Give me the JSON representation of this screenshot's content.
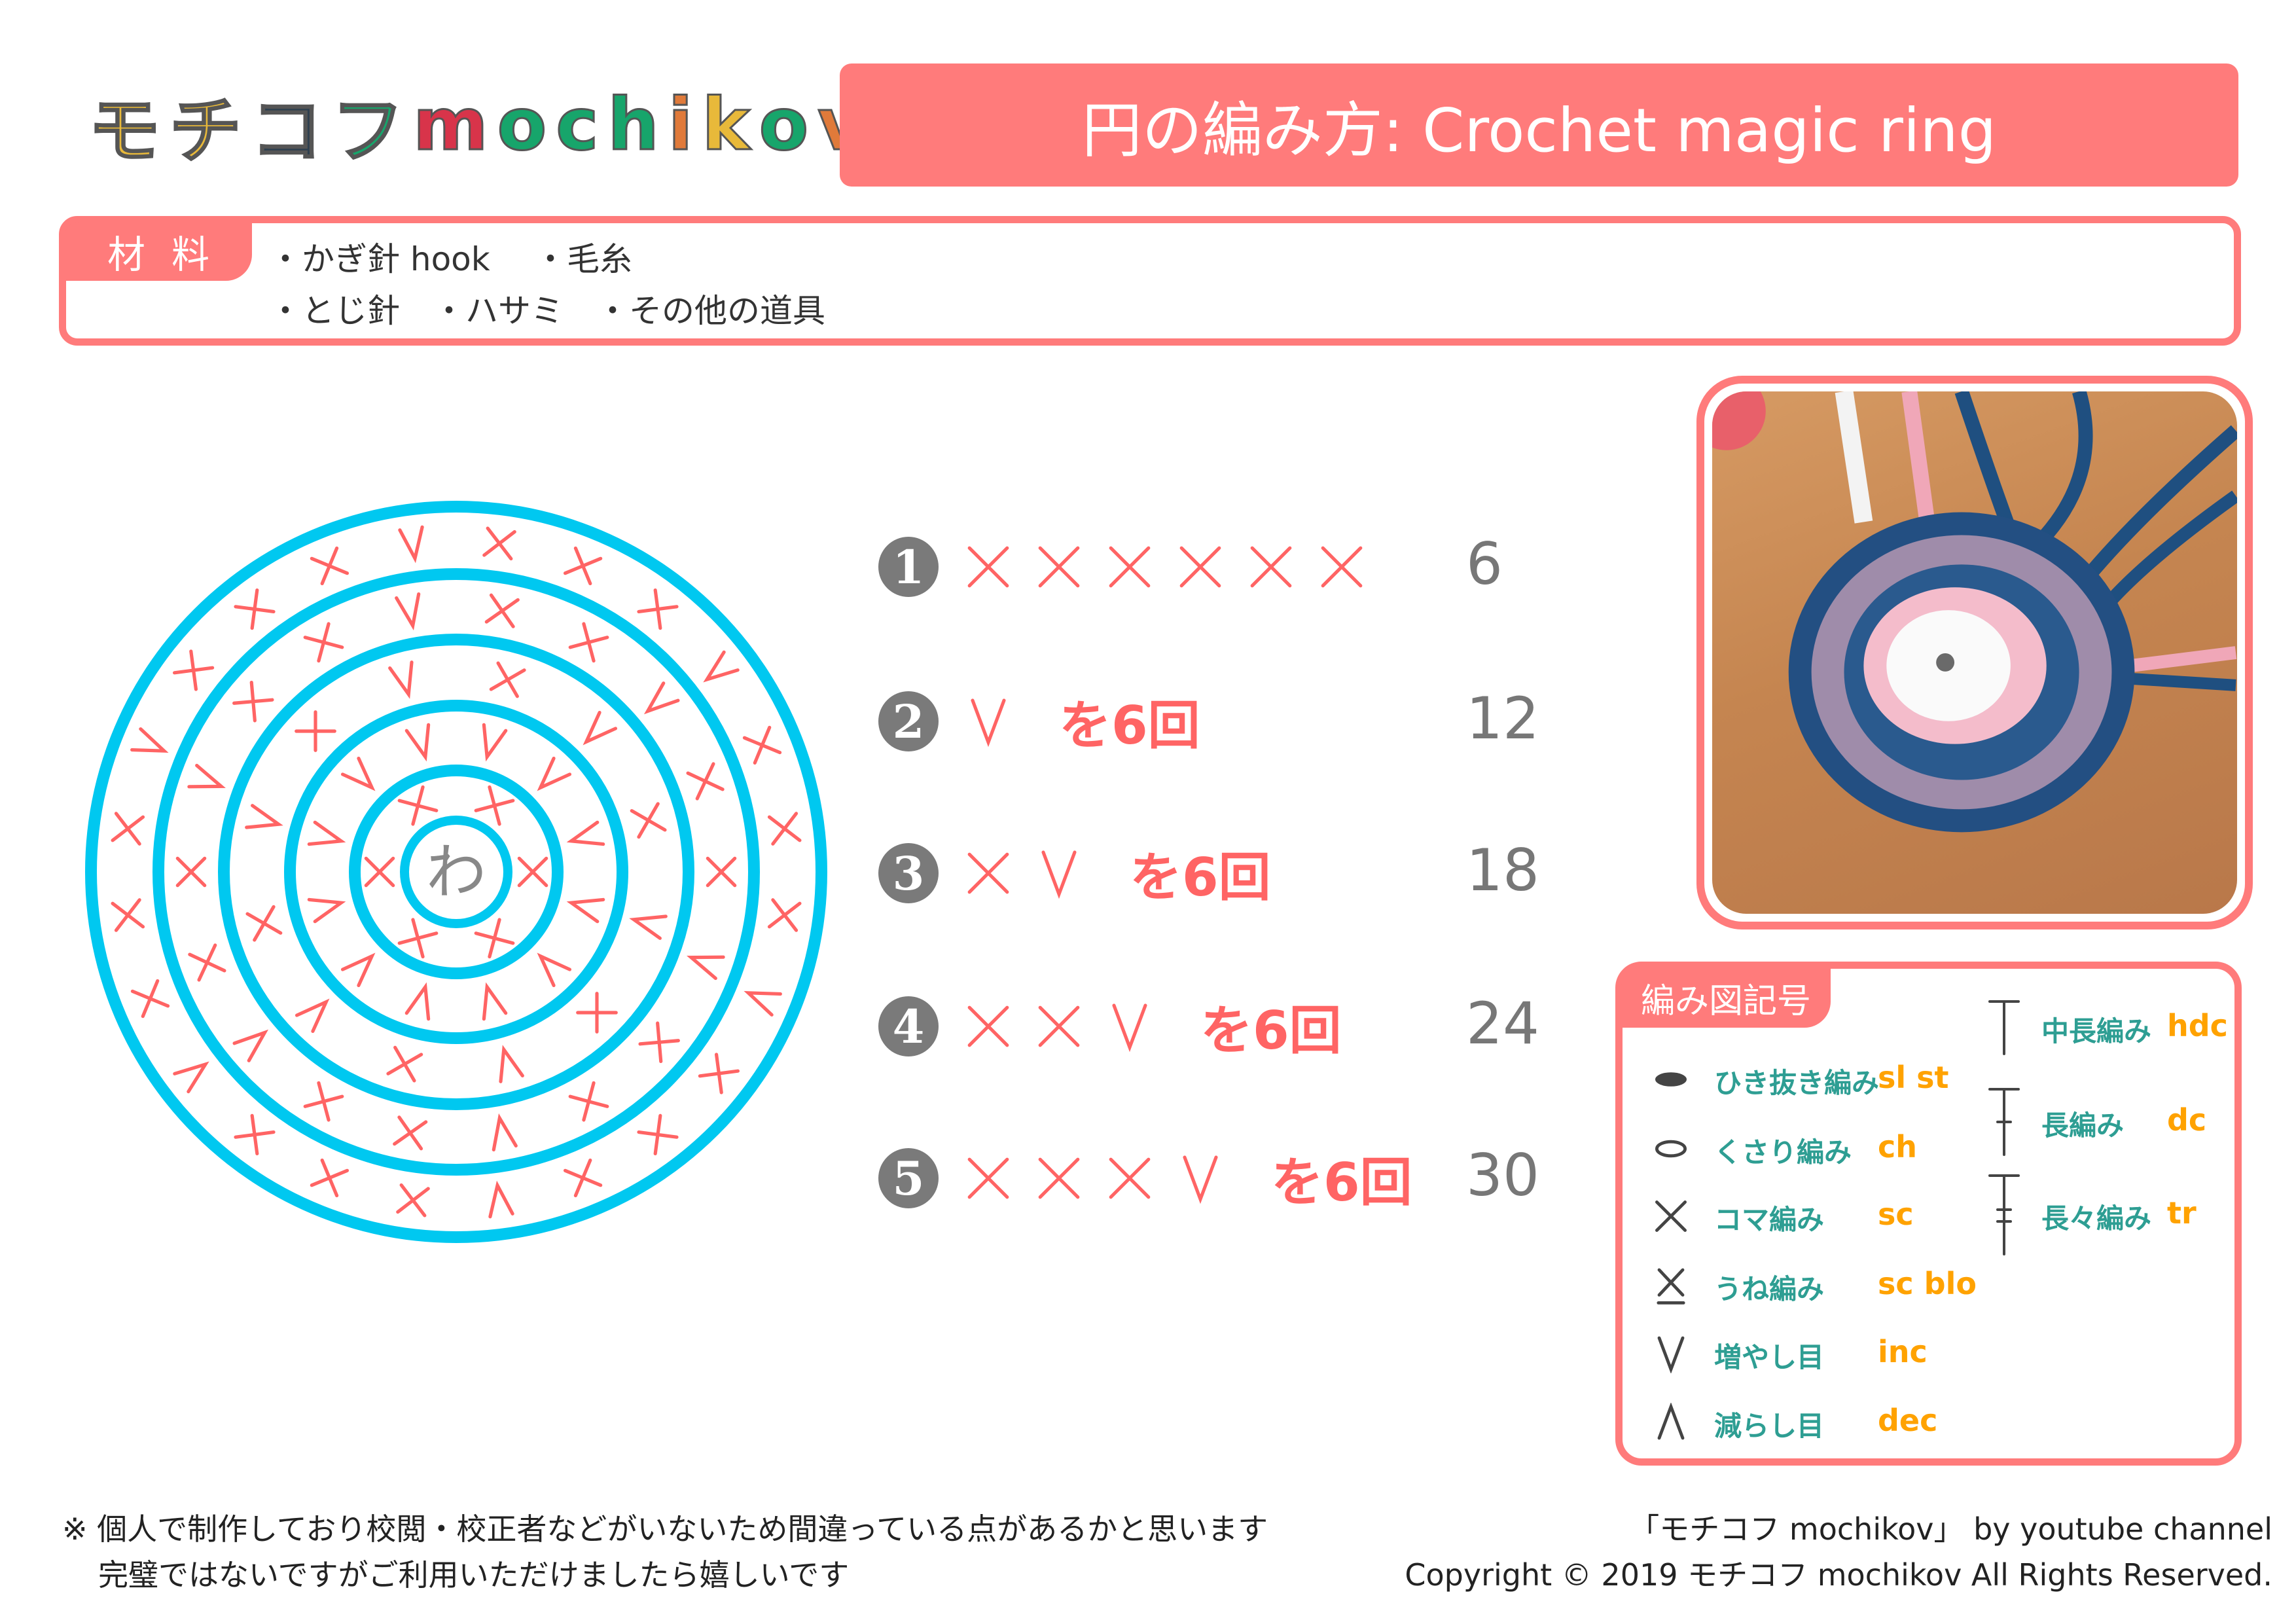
{
  "logo": {
    "text": "モチコフ mochikov",
    "colors": [
      "#e8b93a",
      "#e8b93a",
      "#2d3f4f",
      "#17a56b",
      "#d8344a",
      "#17a56b",
      "#17a56b",
      "#17a56b",
      "#e07a3a",
      "#e8b93a",
      "#17a56b",
      "#e07a3a",
      "#d8344a"
    ]
  },
  "title": "円の編み方: Crochet magic ring",
  "materials": {
    "label": "材料",
    "items_row1": [
      "・かぎ針 hook",
      "・毛糸"
    ],
    "items_row2": [
      "・とじ針",
      "・ハサミ",
      "・その他の道具"
    ]
  },
  "diagram": {
    "center_label": "わ",
    "ring_color": "#00c8f0",
    "stitch_color": "#ff6464",
    "rounds": [
      {
        "pattern": [
          "X"
        ],
        "repeat": 6
      },
      {
        "pattern": [
          "V"
        ],
        "repeat": 6
      },
      {
        "pattern": [
          "X",
          "V"
        ],
        "repeat": 6
      },
      {
        "pattern": [
          "X",
          "X",
          "V"
        ],
        "repeat": 6
      },
      {
        "pattern": [
          "X",
          "X",
          "X",
          "V"
        ],
        "repeat": 6
      }
    ]
  },
  "rows": [
    {
      "number": "1",
      "symbols": [
        "X",
        "X",
        "X",
        "X",
        "X",
        "X"
      ],
      "times": "",
      "count": "6"
    },
    {
      "number": "2",
      "symbols": [
        "V"
      ],
      "times": "を6回",
      "count": "12"
    },
    {
      "number": "3",
      "symbols": [
        "X",
        "V"
      ],
      "times": "を6回",
      "count": "18"
    },
    {
      "number": "4",
      "symbols": [
        "X",
        "X",
        "V"
      ],
      "times": "を6回",
      "count": "24"
    },
    {
      "number": "5",
      "symbols": [
        "X",
        "X",
        "X",
        "V"
      ],
      "times": "を6回",
      "count": "30"
    }
  ],
  "legend": {
    "title": "編み図記号",
    "left": [
      {
        "symbol": "slip-stitch-dot",
        "jp": "ひき抜き編み",
        "en": "sl st"
      },
      {
        "symbol": "chain-oval",
        "jp": "くさり編み",
        "en": "ch"
      },
      {
        "symbol": "x",
        "jp": "コマ編み",
        "en": "sc"
      },
      {
        "symbol": "x-underline",
        "jp": "うね編み",
        "en": "sc blo"
      },
      {
        "symbol": "v",
        "jp": "増やし目",
        "en": "inc"
      },
      {
        "symbol": "lambda",
        "jp": "減らし目",
        "en": "dec"
      }
    ],
    "right": [
      {
        "symbol": "t",
        "jp": "中長編み",
        "en": "hdc"
      },
      {
        "symbol": "t-one-bar",
        "jp": "長編み",
        "en": "dc"
      },
      {
        "symbol": "t-two-bars",
        "jp": "長々編み",
        "en": "tr"
      }
    ]
  },
  "footer": {
    "note_line1": "※ 個人で制作しており校閲・校正者などがいないため間違っている点があるかと思います",
    "note_line2": "完璧ではないですがご利用いただけましたら嬉しいです",
    "credit_line1": "「モチコフ mochikov」 by youtube channel",
    "credit_line2": "Copyright © 2019 モチコフ mochikov All Rights Reserved."
  }
}
